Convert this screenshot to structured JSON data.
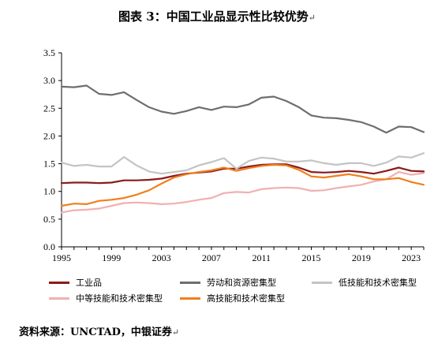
{
  "page": {
    "title": "图表 3：中国工业品显示性比较优势",
    "source": "资料来源：UNCTAD，中银证券",
    "para_mark": "↵"
  },
  "chart_data": {
    "type": "line",
    "title": "图表 3：中国工业品显示性比较优势",
    "xlabel": "",
    "ylabel": "",
    "x": [
      1995,
      1996,
      1997,
      1998,
      1999,
      2000,
      2001,
      2002,
      2003,
      2004,
      2005,
      2006,
      2007,
      2008,
      2009,
      2010,
      2011,
      2012,
      2013,
      2014,
      2015,
      2016,
      2017,
      2018,
      2019,
      2020,
      2021,
      2022,
      2023,
      2024
    ],
    "xticks": [
      "1995",
      "1999",
      "2003",
      "2007",
      "2011",
      "2015",
      "2019",
      "2023"
    ],
    "yticks": [
      "0.0",
      "0.5",
      "1.0",
      "1.5",
      "2.0",
      "2.5",
      "3.0",
      "3.5"
    ],
    "ylim": [
      0,
      3.5
    ],
    "grid": false,
    "legend_position": "bottom",
    "series": [
      {
        "name": "工业品",
        "color": "#8b1a1a",
        "values": [
          1.15,
          1.16,
          1.16,
          1.15,
          1.16,
          1.2,
          1.2,
          1.21,
          1.23,
          1.28,
          1.32,
          1.34,
          1.36,
          1.41,
          1.41,
          1.45,
          1.48,
          1.49,
          1.49,
          1.43,
          1.35,
          1.34,
          1.35,
          1.37,
          1.35,
          1.32,
          1.37,
          1.43,
          1.37,
          1.36
        ]
      },
      {
        "name": "劳动和资源密集型",
        "color": "#6e6e6e",
        "values": [
          2.89,
          2.88,
          2.91,
          2.76,
          2.74,
          2.79,
          2.65,
          2.52,
          2.44,
          2.4,
          2.45,
          2.52,
          2.47,
          2.53,
          2.52,
          2.57,
          2.69,
          2.71,
          2.63,
          2.52,
          2.37,
          2.33,
          2.32,
          2.29,
          2.25,
          2.17,
          2.06,
          2.17,
          2.16,
          2.07
        ]
      },
      {
        "name": "低技能和技术密集型",
        "color": "#c4c4c4",
        "values": [
          1.52,
          1.46,
          1.48,
          1.45,
          1.45,
          1.62,
          1.47,
          1.36,
          1.32,
          1.35,
          1.38,
          1.47,
          1.53,
          1.6,
          1.41,
          1.55,
          1.61,
          1.59,
          1.54,
          1.54,
          1.56,
          1.51,
          1.48,
          1.51,
          1.51,
          1.46,
          1.52,
          1.63,
          1.61,
          1.69
        ]
      },
      {
        "name": "中等技能和技术密集型",
        "color": "#f1b0b0",
        "values": [
          0.62,
          0.66,
          0.67,
          0.69,
          0.74,
          0.79,
          0.8,
          0.79,
          0.77,
          0.78,
          0.81,
          0.85,
          0.88,
          0.97,
          0.99,
          0.98,
          1.04,
          1.06,
          1.07,
          1.06,
          1.01,
          1.02,
          1.06,
          1.09,
          1.12,
          1.18,
          1.22,
          1.35,
          1.3,
          1.33
        ]
      },
      {
        "name": "高技能和技术密集型",
        "color": "#f07f1c",
        "values": [
          0.74,
          0.78,
          0.77,
          0.83,
          0.85,
          0.88,
          0.94,
          1.02,
          1.14,
          1.25,
          1.31,
          1.35,
          1.38,
          1.43,
          1.37,
          1.42,
          1.46,
          1.48,
          1.47,
          1.39,
          1.27,
          1.25,
          1.28,
          1.31,
          1.27,
          1.22,
          1.22,
          1.24,
          1.17,
          1.12
        ]
      }
    ]
  }
}
